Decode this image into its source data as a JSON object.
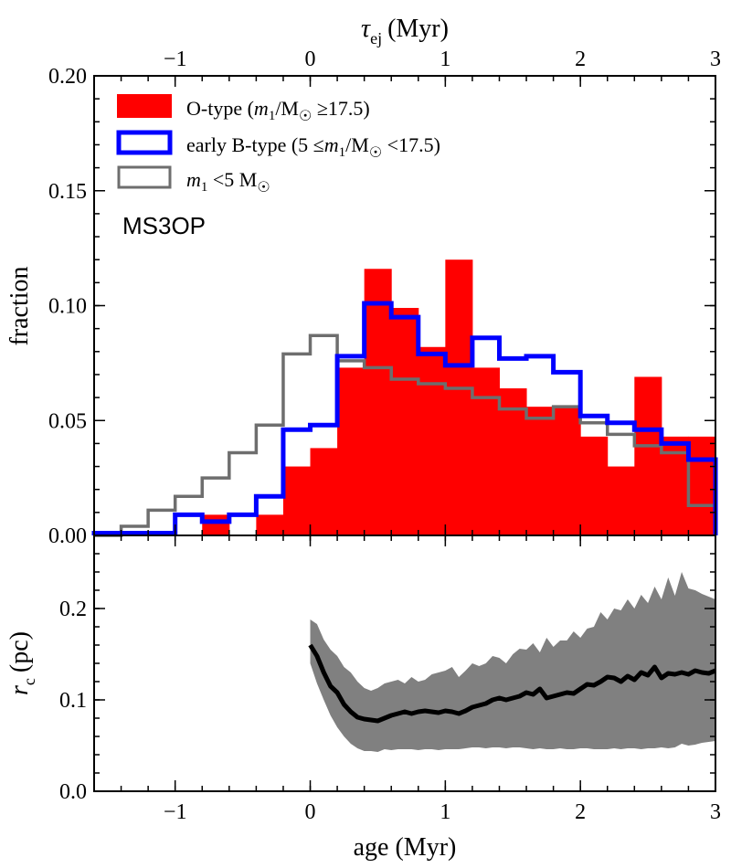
{
  "chart_data": [
    {
      "type": "bar",
      "panel": "top",
      "title": "",
      "xlabel": "",
      "ylabel": "fraction",
      "top_axis_label": "τej (Myr)",
      "top_axis_label_main": "τ",
      "top_axis_label_sub": "ej",
      "top_axis_label_unit": "(Myr)",
      "top_axis_ticks": [
        "−1",
        "0",
        "1",
        "2",
        "3"
      ],
      "top_axis_tick_values": [
        -1,
        0,
        1,
        2,
        3
      ],
      "xlim": [
        -1.6,
        3.0
      ],
      "ylim": [
        0,
        0.2
      ],
      "x_ticks": [
        -1,
        0,
        1,
        2,
        3
      ],
      "y_ticks": [
        0.0,
        0.05,
        0.1,
        0.15,
        0.2
      ],
      "y_tick_labels": [
        "0.00",
        "0.05",
        "0.10",
        "0.15",
        "0.20"
      ],
      "bin_edges": [
        -1.6,
        -1.4,
        -1.2,
        -1.0,
        -0.8,
        -0.6,
        -0.4,
        -0.2,
        0.0,
        0.2,
        0.4,
        0.6,
        0.8,
        1.0,
        1.2,
        1.4,
        1.6,
        1.8,
        2.0,
        2.2,
        2.4,
        2.6,
        2.8,
        3.0
      ],
      "panel_tag": "MS3OP",
      "legend_position": "top-left",
      "series": [
        {
          "name": "O-type",
          "legend_label": "O-type (m1/M☉ ≥17.5)",
          "legend_prefix": "O-type (",
          "legend_m": "m",
          "legend_sub": "1",
          "legend_mid": "/M",
          "legend_sun": "☉",
          "legend_suffix": " ≥17.5)",
          "style": "filled",
          "color": "#ff0000",
          "values": [
            0.0,
            0.0,
            0.0,
            0.0,
            0.009,
            0.0,
            0.009,
            0.03,
            0.038,
            0.073,
            0.116,
            0.099,
            0.082,
            0.12,
            0.073,
            0.064,
            0.056,
            0.056,
            0.043,
            0.03,
            0.069,
            0.043,
            0.043
          ]
        },
        {
          "name": "early B-type",
          "legend_label": "early B-type (5 ≤m1/M☉ <17.5)",
          "legend_prefix": "early B-type (5 ≤",
          "legend_m": "m",
          "legend_sub": "1",
          "legend_mid": "/M",
          "legend_sun": "☉",
          "legend_suffix": " <17.5)",
          "style": "step",
          "color": "#0000ff",
          "values": [
            0.001,
            0.001,
            0.001,
            0.009,
            0.006,
            0.009,
            0.017,
            0.046,
            0.048,
            0.078,
            0.101,
            0.095,
            0.079,
            0.074,
            0.086,
            0.077,
            0.078,
            0.071,
            0.052,
            0.049,
            0.046,
            0.04,
            0.033
          ]
        },
        {
          "name": "m1 < 5 Msun",
          "legend_label": "m1 <5 M☉",
          "legend_prefix": "",
          "legend_m": "m",
          "legend_sub": "1",
          "legend_mid": " <5 M",
          "legend_sun": "☉",
          "legend_suffix": "",
          "style": "step",
          "color": "#6e6e6e",
          "values": [
            0.0,
            0.004,
            0.011,
            0.017,
            0.025,
            0.036,
            0.048,
            0.079,
            0.087,
            0.076,
            0.073,
            0.068,
            0.066,
            0.064,
            0.06,
            0.055,
            0.051,
            0.056,
            0.049,
            0.044,
            0.039,
            0.036,
            0.013
          ]
        }
      ]
    },
    {
      "type": "line",
      "panel": "bottom",
      "title": "",
      "xlabel": "age (Myr)",
      "ylabel": "rc (pc)",
      "ylabel_main": "r",
      "ylabel_sub": "c",
      "ylabel_unit": "(pc)",
      "xlim": [
        -1.6,
        3.0
      ],
      "ylim": [
        0.0,
        0.28
      ],
      "x_ticks": [
        -1,
        0,
        1,
        2,
        3
      ],
      "x_tick_labels": [
        "−1",
        "0",
        "1",
        "2",
        "3"
      ],
      "y_ticks": [
        0.0,
        0.1,
        0.2
      ],
      "y_tick_labels": [
        "0.0",
        "0.1",
        "0.2"
      ],
      "series": [
        {
          "name": "rc median",
          "color": "#000000",
          "x": [
            0.0,
            0.05,
            0.1,
            0.15,
            0.2,
            0.25,
            0.3,
            0.35,
            0.4,
            0.45,
            0.5,
            0.55,
            0.6,
            0.65,
            0.7,
            0.75,
            0.8,
            0.85,
            0.9,
            0.95,
            1.0,
            1.05,
            1.1,
            1.15,
            1.2,
            1.25,
            1.3,
            1.35,
            1.4,
            1.45,
            1.5,
            1.55,
            1.6,
            1.65,
            1.7,
            1.75,
            1.8,
            1.85,
            1.9,
            1.95,
            2.0,
            2.05,
            2.1,
            2.15,
            2.2,
            2.25,
            2.3,
            2.35,
            2.4,
            2.45,
            2.5,
            2.55,
            2.6,
            2.65,
            2.7,
            2.75,
            2.8,
            2.85,
            2.9,
            2.95,
            3.0
          ],
          "values": [
            0.16,
            0.148,
            0.13,
            0.115,
            0.108,
            0.095,
            0.087,
            0.081,
            0.079,
            0.078,
            0.077,
            0.08,
            0.083,
            0.085,
            0.087,
            0.085,
            0.087,
            0.088,
            0.087,
            0.086,
            0.088,
            0.087,
            0.085,
            0.088,
            0.092,
            0.094,
            0.096,
            0.1,
            0.102,
            0.1,
            0.102,
            0.104,
            0.108,
            0.106,
            0.112,
            0.102,
            0.104,
            0.106,
            0.108,
            0.107,
            0.112,
            0.117,
            0.116,
            0.12,
            0.125,
            0.124,
            0.12,
            0.126,
            0.122,
            0.13,
            0.127,
            0.136,
            0.124,
            0.129,
            0.128,
            0.13,
            0.128,
            0.132,
            0.13,
            0.129,
            0.132
          ],
          "band_color": "#808080",
          "band_low": [
            0.14,
            0.118,
            0.1,
            0.083,
            0.07,
            0.06,
            0.052,
            0.047,
            0.044,
            0.044,
            0.043,
            0.046,
            0.045,
            0.046,
            0.046,
            0.046,
            0.045,
            0.046,
            0.046,
            0.045,
            0.046,
            0.046,
            0.046,
            0.047,
            0.048,
            0.048,
            0.047,
            0.048,
            0.048,
            0.047,
            0.048,
            0.048,
            0.047,
            0.046,
            0.047,
            0.046,
            0.046,
            0.047,
            0.046,
            0.046,
            0.047,
            0.047,
            0.046,
            0.046,
            0.046,
            0.047,
            0.046,
            0.047,
            0.047,
            0.046,
            0.047,
            0.047,
            0.048,
            0.047,
            0.048,
            0.052,
            0.05,
            0.051,
            0.053,
            0.054,
            0.055
          ],
          "band_high": [
            0.188,
            0.183,
            0.166,
            0.155,
            0.148,
            0.136,
            0.13,
            0.12,
            0.113,
            0.11,
            0.113,
            0.118,
            0.12,
            0.122,
            0.118,
            0.125,
            0.12,
            0.122,
            0.128,
            0.13,
            0.132,
            0.136,
            0.125,
            0.132,
            0.14,
            0.137,
            0.14,
            0.148,
            0.146,
            0.14,
            0.15,
            0.156,
            0.155,
            0.162,
            0.152,
            0.168,
            0.158,
            0.165,
            0.165,
            0.175,
            0.168,
            0.178,
            0.18,
            0.196,
            0.188,
            0.2,
            0.198,
            0.21,
            0.2,
            0.215,
            0.206,
            0.224,
            0.21,
            0.234,
            0.214,
            0.24,
            0.222,
            0.22,
            0.216,
            0.213,
            0.21
          ]
        }
      ]
    }
  ]
}
